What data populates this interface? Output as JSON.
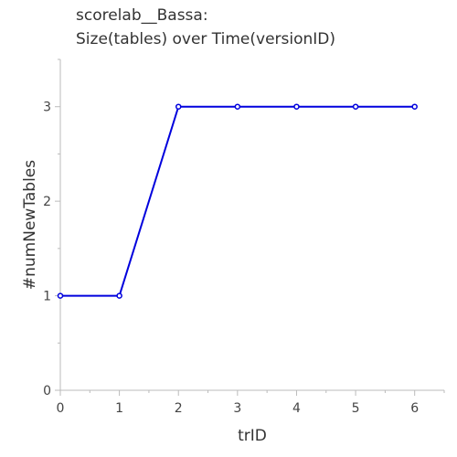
{
  "chart_data": {
    "type": "line",
    "title_line1": "scorelab__Bassa:",
    "title_line2": "Size(tables) over Time(versionID)",
    "xlabel": "trID",
    "ylabel": "#numNewTables",
    "x": [
      0,
      1,
      2,
      3,
      4,
      5,
      6
    ],
    "series": [
      {
        "values": [
          1,
          1,
          3,
          3,
          3,
          3,
          3
        ]
      }
    ],
    "xlim": [
      0,
      6.5
    ],
    "ylim": [
      0,
      3.5
    ],
    "xticks": [
      "0",
      "1",
      "2",
      "3",
      "4",
      "5",
      "6"
    ],
    "yticks": [
      "0",
      "1",
      "2",
      "3"
    ],
    "grid": false,
    "line_color": "#0000dd"
  }
}
